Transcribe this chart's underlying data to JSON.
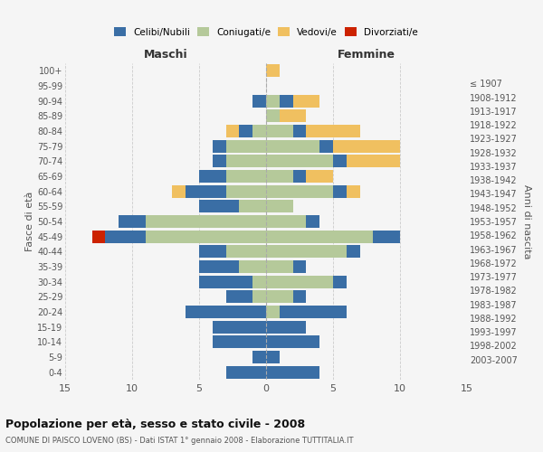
{
  "age_groups_bottom_to_top": [
    "0-4",
    "5-9",
    "10-14",
    "15-19",
    "20-24",
    "25-29",
    "30-34",
    "35-39",
    "40-44",
    "45-49",
    "50-54",
    "55-59",
    "60-64",
    "65-69",
    "70-74",
    "75-79",
    "80-84",
    "85-89",
    "90-94",
    "95-99",
    "100+"
  ],
  "birth_years_bottom_to_top": [
    "2003-2007",
    "1998-2002",
    "1993-1997",
    "1988-1992",
    "1983-1987",
    "1978-1982",
    "1973-1977",
    "1968-1972",
    "1963-1967",
    "1958-1962",
    "1953-1957",
    "1948-1952",
    "1943-1947",
    "1938-1942",
    "1933-1937",
    "1928-1932",
    "1923-1927",
    "1918-1922",
    "1913-1917",
    "1908-1912",
    "≤ 1907"
  ],
  "colors": {
    "celibe": "#3a6ea5",
    "coniugato": "#b5c99a",
    "vedovo": "#f0c060",
    "divorziato": "#cc2200"
  },
  "maschi": {
    "celibe": [
      3,
      1,
      4,
      4,
      6,
      2,
      4,
      3,
      2,
      3,
      2,
      3,
      3,
      2,
      1,
      1,
      1,
      0,
      1,
      0,
      0
    ],
    "coniugato": [
      0,
      0,
      0,
      0,
      0,
      1,
      1,
      2,
      3,
      9,
      9,
      2,
      3,
      3,
      3,
      3,
      1,
      0,
      0,
      0,
      0
    ],
    "vedovo": [
      0,
      0,
      0,
      0,
      0,
      0,
      0,
      0,
      0,
      0,
      0,
      0,
      1,
      0,
      0,
      0,
      1,
      0,
      0,
      0,
      0
    ],
    "divorziato": [
      0,
      0,
      0,
      0,
      0,
      0,
      0,
      0,
      0,
      1,
      0,
      0,
      0,
      0,
      0,
      0,
      0,
      0,
      0,
      0,
      0
    ]
  },
  "femmine": {
    "nubile": [
      4,
      1,
      4,
      3,
      5,
      1,
      1,
      1,
      1,
      2,
      1,
      0,
      1,
      1,
      1,
      1,
      1,
      0,
      1,
      0,
      0
    ],
    "coniugata": [
      0,
      0,
      0,
      0,
      1,
      2,
      5,
      2,
      6,
      8,
      3,
      2,
      5,
      2,
      5,
      4,
      2,
      1,
      1,
      0,
      0
    ],
    "vedova": [
      0,
      0,
      0,
      0,
      0,
      0,
      0,
      0,
      0,
      0,
      0,
      0,
      1,
      2,
      4,
      5,
      4,
      2,
      2,
      0,
      1
    ],
    "divorziata": [
      0,
      0,
      0,
      0,
      0,
      0,
      0,
      0,
      0,
      0,
      0,
      0,
      0,
      0,
      0,
      0,
      0,
      0,
      0,
      0,
      0
    ]
  },
  "xlim": 15,
  "title": "Popolazione per età, sesso e stato civile - 2008",
  "subtitle": "COMUNE DI PAISCO LOVENO (BS) - Dati ISTAT 1° gennaio 2008 - Elaborazione TUTTITALIA.IT",
  "xlabel_left": "Maschi",
  "xlabel_right": "Femmine",
  "ylabel_left": "Fasce di età",
  "ylabel_right": "Anni di nascita",
  "bg_color": "#f5f5f5",
  "grid_color": "#cccccc"
}
